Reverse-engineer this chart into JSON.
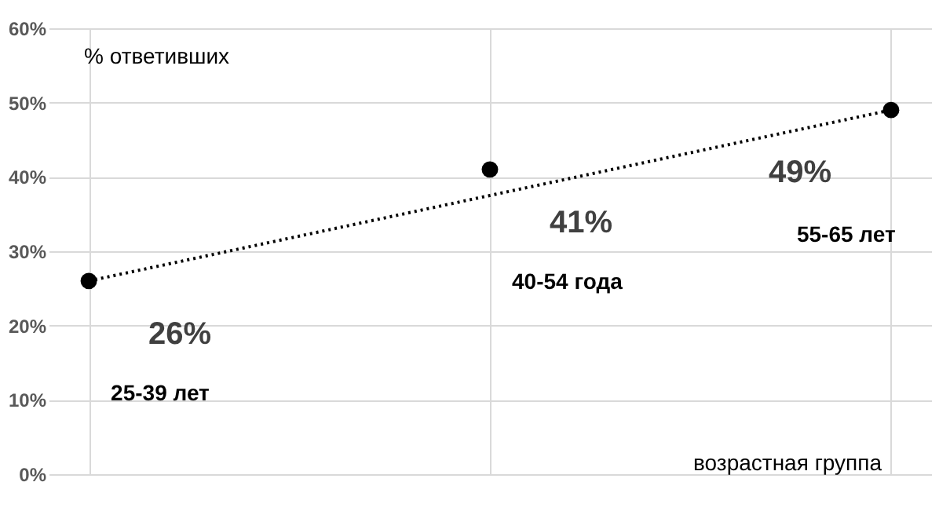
{
  "chart_data": {
    "type": "scatter",
    "categories": [
      "25-39 лет",
      "40-54 года",
      "55-65 лет"
    ],
    "xlabel": "возрастная группа",
    "ylabel": "% ответивших",
    "ylim": [
      0,
      60
    ],
    "yticks": [
      {
        "value": 0,
        "label": "0%"
      },
      {
        "value": 10,
        "label": "10%"
      },
      {
        "value": 20,
        "label": "20%"
      },
      {
        "value": 30,
        "label": "30%"
      },
      {
        "value": 40,
        "label": "40%"
      },
      {
        "value": 50,
        "label": "50%"
      },
      {
        "value": 60,
        "label": "60%"
      }
    ],
    "grid": true,
    "marker": "circle",
    "tick_labels": "y",
    "series": [
      {
        "color": "#000000",
        "values": [
          26,
          41,
          49
        ],
        "value_labels": [
          "26%",
          "41%",
          "49%"
        ]
      },
      {
        "type": "line",
        "color": "#000000",
        "line_style": "dotted",
        "marker": "none",
        "values": [
          26,
          37.5,
          49
        ]
      }
    ]
  }
}
